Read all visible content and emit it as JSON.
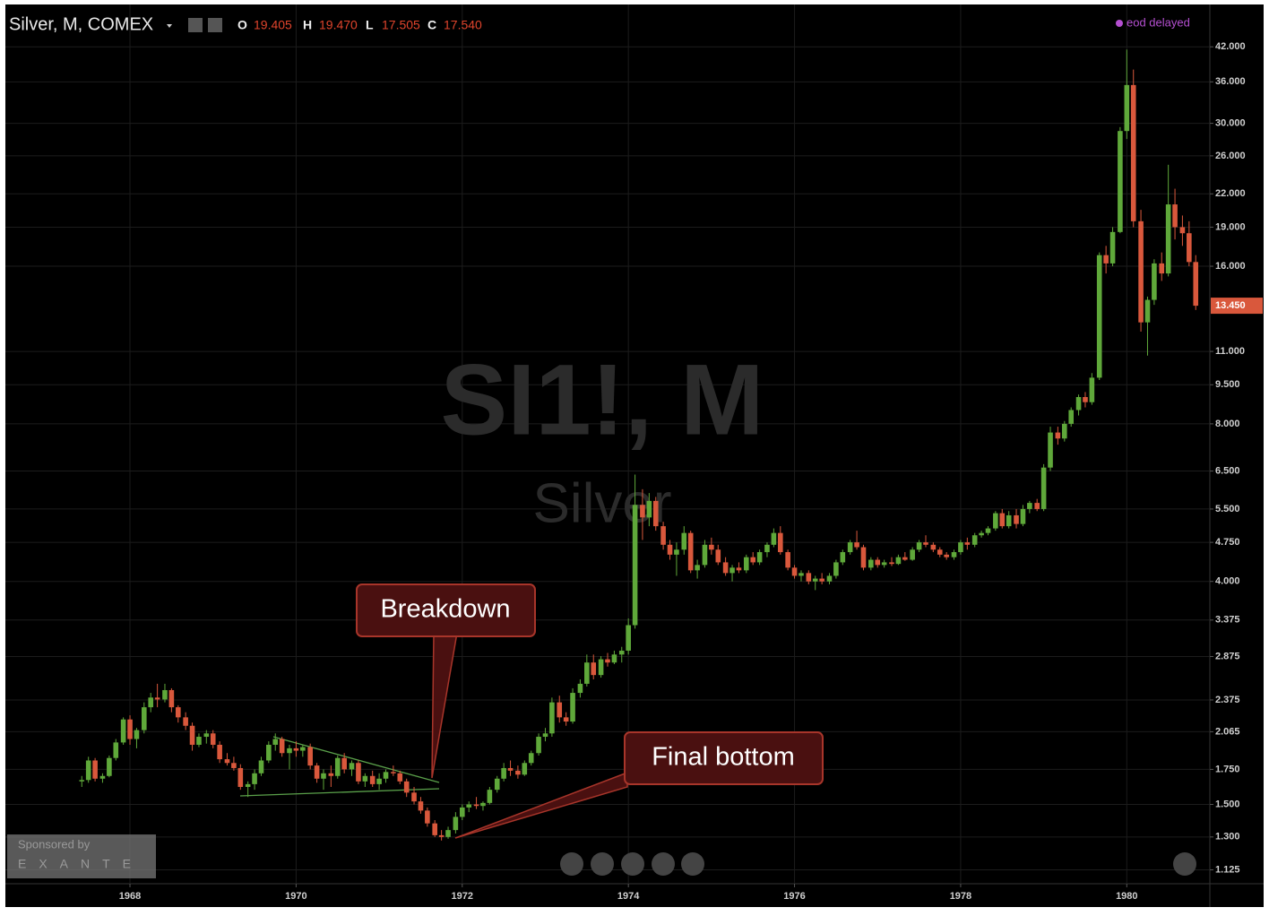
{
  "chart_data": {
    "type": "candlestick",
    "title": "Silver, M, COMEX",
    "ohlc_readout": [
      {
        "key": "O",
        "value": 19.405,
        "label": "19.405"
      },
      {
        "key": "H",
        "value": 19.47,
        "label": "19.470"
      },
      {
        "key": "L",
        "value": 17.505,
        "label": "17.505"
      },
      {
        "key": "C",
        "value": 17.54,
        "label": "17.540"
      }
    ],
    "status": "eod delayed",
    "watermark": "SI1!, M",
    "watermark_subtitle": "Silver",
    "annotations": [
      "Breakdown",
      "Final bottom"
    ],
    "sponsor": {
      "text": "Sponsored by",
      "name": "EXANTE"
    },
    "log_scale": true,
    "grid": true,
    "up_color": "#5fa83a",
    "down_color": "#d9583c",
    "last_price": {
      "value": 13.45,
      "label": "13.450"
    },
    "xlim": [
      1966.5,
      1981.0
    ],
    "xticks": [
      1968,
      1970,
      1972,
      1974,
      1976,
      1978,
      1980
    ],
    "ylim": [
      1.05,
      50
    ],
    "yticks": [
      {
        "value": 1.125,
        "label": "1.125"
      },
      {
        "value": 1.3,
        "label": "1.300"
      },
      {
        "value": 1.5,
        "label": "1.500"
      },
      {
        "value": 1.75,
        "label": "1.750"
      },
      {
        "value": 2.065,
        "label": "2.065"
      },
      {
        "value": 2.375,
        "label": "2.375"
      },
      {
        "value": 2.875,
        "label": "2.875"
      },
      {
        "value": 3.375,
        "label": "3.375"
      },
      {
        "value": 4,
        "label": "4.000"
      },
      {
        "value": 4.75,
        "label": "4.750"
      },
      {
        "value": 5.5,
        "label": "5.500"
      },
      {
        "value": 6.5,
        "label": "6.500"
      },
      {
        "value": 8,
        "label": "8.000"
      },
      {
        "value": 9.5,
        "label": "9.500"
      },
      {
        "value": 11,
        "label": "11.000"
      },
      {
        "value": 16,
        "label": "16.000"
      },
      {
        "value": 19,
        "label": "19.000"
      },
      {
        "value": 22,
        "label": "22.000"
      },
      {
        "value": 26,
        "label": "26.000"
      },
      {
        "value": 30,
        "label": "30.000"
      },
      {
        "value": 36,
        "label": "36.000"
      },
      {
        "value": 42,
        "label": "42.000"
      }
    ],
    "candles": [
      [
        1967.42,
        1.66,
        1.7,
        1.62,
        1.67
      ],
      [
        1967.5,
        1.67,
        1.85,
        1.65,
        1.82
      ],
      [
        1967.58,
        1.82,
        1.84,
        1.66,
        1.68
      ],
      [
        1967.67,
        1.68,
        1.72,
        1.65,
        1.7
      ],
      [
        1967.75,
        1.7,
        1.86,
        1.69,
        1.84
      ],
      [
        1967.83,
        1.84,
        2.0,
        1.82,
        1.97
      ],
      [
        1967.92,
        1.97,
        2.2,
        1.95,
        2.18
      ],
      [
        1968.0,
        2.18,
        2.22,
        1.95,
        2.0
      ],
      [
        1968.08,
        2.0,
        2.1,
        1.92,
        2.08
      ],
      [
        1968.17,
        2.08,
        2.35,
        2.05,
        2.3
      ],
      [
        1968.25,
        2.3,
        2.45,
        2.25,
        2.4
      ],
      [
        1968.33,
        2.4,
        2.55,
        2.3,
        2.38
      ],
      [
        1968.42,
        2.38,
        2.55,
        2.35,
        2.48
      ],
      [
        1968.5,
        2.48,
        2.5,
        2.25,
        2.3
      ],
      [
        1968.58,
        2.3,
        2.32,
        2.15,
        2.2
      ],
      [
        1968.67,
        2.2,
        2.25,
        2.08,
        2.12
      ],
      [
        1968.75,
        2.12,
        2.15,
        1.9,
        1.95
      ],
      [
        1968.83,
        1.95,
        2.05,
        1.93,
        2.02
      ],
      [
        1968.92,
        2.02,
        2.08,
        1.96,
        2.05
      ],
      [
        1969.0,
        2.05,
        2.08,
        1.92,
        1.95
      ],
      [
        1969.08,
        1.95,
        1.98,
        1.8,
        1.83
      ],
      [
        1969.17,
        1.83,
        1.88,
        1.78,
        1.8
      ],
      [
        1969.25,
        1.8,
        1.85,
        1.74,
        1.76
      ],
      [
        1969.33,
        1.76,
        1.79,
        1.6,
        1.62
      ],
      [
        1969.42,
        1.62,
        1.66,
        1.55,
        1.64
      ],
      [
        1969.5,
        1.64,
        1.75,
        1.6,
        1.72
      ],
      [
        1969.58,
        1.72,
        1.85,
        1.7,
        1.82
      ],
      [
        1969.67,
        1.82,
        1.98,
        1.8,
        1.95
      ],
      [
        1969.75,
        1.95,
        2.05,
        1.9,
        2.0
      ],
      [
        1969.83,
        2.0,
        2.02,
        1.85,
        1.88
      ],
      [
        1969.92,
        1.88,
        1.95,
        1.75,
        1.92
      ],
      [
        1970.0,
        1.92,
        1.98,
        1.85,
        1.9
      ],
      [
        1970.08,
        1.9,
        1.95,
        1.85,
        1.93
      ],
      [
        1970.17,
        1.93,
        1.96,
        1.75,
        1.78
      ],
      [
        1970.25,
        1.78,
        1.8,
        1.65,
        1.68
      ],
      [
        1970.33,
        1.68,
        1.75,
        1.6,
        1.72
      ],
      [
        1970.42,
        1.72,
        1.78,
        1.62,
        1.7
      ],
      [
        1970.5,
        1.7,
        1.86,
        1.68,
        1.84
      ],
      [
        1970.58,
        1.84,
        1.88,
        1.72,
        1.75
      ],
      [
        1970.67,
        1.75,
        1.82,
        1.7,
        1.8
      ],
      [
        1970.75,
        1.8,
        1.82,
        1.64,
        1.66
      ],
      [
        1970.83,
        1.66,
        1.72,
        1.62,
        1.7
      ],
      [
        1970.92,
        1.7,
        1.74,
        1.62,
        1.64
      ],
      [
        1971.0,
        1.64,
        1.72,
        1.6,
        1.68
      ],
      [
        1971.08,
        1.68,
        1.75,
        1.65,
        1.73
      ],
      [
        1971.17,
        1.73,
        1.78,
        1.7,
        1.72
      ],
      [
        1971.25,
        1.72,
        1.74,
        1.64,
        1.66
      ],
      [
        1971.33,
        1.66,
        1.68,
        1.55,
        1.58
      ],
      [
        1971.42,
        1.58,
        1.62,
        1.5,
        1.52
      ],
      [
        1971.5,
        1.52,
        1.55,
        1.44,
        1.46
      ],
      [
        1971.58,
        1.46,
        1.48,
        1.36,
        1.38
      ],
      [
        1971.67,
        1.38,
        1.4,
        1.3,
        1.31
      ],
      [
        1971.75,
        1.31,
        1.34,
        1.28,
        1.3
      ],
      [
        1971.83,
        1.3,
        1.36,
        1.29,
        1.34
      ],
      [
        1971.92,
        1.34,
        1.45,
        1.32,
        1.42
      ],
      [
        1972.0,
        1.42,
        1.5,
        1.4,
        1.48
      ],
      [
        1972.08,
        1.48,
        1.52,
        1.45,
        1.5
      ],
      [
        1972.17,
        1.5,
        1.55,
        1.47,
        1.49
      ],
      [
        1972.25,
        1.49,
        1.52,
        1.46,
        1.51
      ],
      [
        1972.33,
        1.51,
        1.62,
        1.5,
        1.6
      ],
      [
        1972.42,
        1.6,
        1.7,
        1.58,
        1.68
      ],
      [
        1972.5,
        1.68,
        1.8,
        1.66,
        1.76
      ],
      [
        1972.58,
        1.76,
        1.82,
        1.7,
        1.74
      ],
      [
        1972.67,
        1.74,
        1.78,
        1.68,
        1.71
      ],
      [
        1972.75,
        1.71,
        1.82,
        1.7,
        1.8
      ],
      [
        1972.83,
        1.8,
        1.9,
        1.78,
        1.88
      ],
      [
        1972.92,
        1.88,
        2.05,
        1.86,
        2.02
      ],
      [
        1973.0,
        2.02,
        2.1,
        1.98,
        2.05
      ],
      [
        1973.08,
        2.05,
        2.4,
        2.02,
        2.35
      ],
      [
        1973.17,
        2.35,
        2.42,
        2.15,
        2.2
      ],
      [
        1973.25,
        2.2,
        2.25,
        2.12,
        2.16
      ],
      [
        1973.33,
        2.16,
        2.5,
        2.14,
        2.45
      ],
      [
        1973.42,
        2.45,
        2.6,
        2.4,
        2.55
      ],
      [
        1973.5,
        2.55,
        2.9,
        2.52,
        2.8
      ],
      [
        1973.58,
        2.8,
        2.9,
        2.6,
        2.65
      ],
      [
        1973.67,
        2.65,
        2.88,
        2.62,
        2.84
      ],
      [
        1973.75,
        2.84,
        2.92,
        2.75,
        2.8
      ],
      [
        1973.83,
        2.8,
        2.95,
        2.78,
        2.9
      ],
      [
        1973.92,
        2.9,
        3.0,
        2.8,
        2.95
      ],
      [
        1974.0,
        2.95,
        3.4,
        2.9,
        3.3
      ],
      [
        1974.08,
        3.3,
        6.4,
        3.25,
        5.6
      ],
      [
        1974.17,
        5.6,
        6.0,
        4.8,
        5.3
      ],
      [
        1974.25,
        5.3,
        5.9,
        5.1,
        5.7
      ],
      [
        1974.33,
        5.7,
        5.8,
        5.0,
        5.1
      ],
      [
        1974.42,
        5.1,
        5.2,
        4.6,
        4.7
      ],
      [
        1974.5,
        4.7,
        4.8,
        4.4,
        4.5
      ],
      [
        1974.58,
        4.5,
        4.75,
        4.1,
        4.6
      ],
      [
        1974.67,
        4.6,
        5.1,
        4.5,
        4.95
      ],
      [
        1974.75,
        4.95,
        5.0,
        4.15,
        4.2
      ],
      [
        1974.83,
        4.2,
        4.4,
        4.05,
        4.3
      ],
      [
        1974.92,
        4.3,
        4.8,
        4.25,
        4.7
      ],
      [
        1975.0,
        4.7,
        4.85,
        4.5,
        4.6
      ],
      [
        1975.08,
        4.6,
        4.7,
        4.3,
        4.35
      ],
      [
        1975.17,
        4.35,
        4.45,
        4.1,
        4.15
      ],
      [
        1975.25,
        4.15,
        4.3,
        4.0,
        4.25
      ],
      [
        1975.33,
        4.25,
        4.35,
        4.15,
        4.2
      ],
      [
        1975.42,
        4.2,
        4.5,
        4.15,
        4.45
      ],
      [
        1975.5,
        4.45,
        4.55,
        4.3,
        4.35
      ],
      [
        1975.58,
        4.35,
        4.6,
        4.3,
        4.55
      ],
      [
        1975.67,
        4.55,
        4.75,
        4.45,
        4.7
      ],
      [
        1975.75,
        4.7,
        5.05,
        4.65,
        4.95
      ],
      [
        1975.83,
        4.95,
        5.1,
        4.5,
        4.55
      ],
      [
        1975.92,
        4.55,
        4.6,
        4.2,
        4.25
      ],
      [
        1976.0,
        4.25,
        4.3,
        4.05,
        4.1
      ],
      [
        1976.08,
        4.1,
        4.2,
        4.0,
        4.15
      ],
      [
        1976.17,
        4.15,
        4.2,
        3.95,
        4.0
      ],
      [
        1976.25,
        4.0,
        4.1,
        3.85,
        4.05
      ],
      [
        1976.33,
        4.05,
        4.15,
        3.95,
        4.0
      ],
      [
        1976.42,
        4.0,
        4.15,
        3.95,
        4.1
      ],
      [
        1976.5,
        4.1,
        4.4,
        4.05,
        4.35
      ],
      [
        1976.58,
        4.35,
        4.6,
        4.3,
        4.55
      ],
      [
        1976.67,
        4.55,
        4.8,
        4.5,
        4.75
      ],
      [
        1976.75,
        4.75,
        5.0,
        4.6,
        4.65
      ],
      [
        1976.83,
        4.65,
        4.7,
        4.2,
        4.25
      ],
      [
        1976.92,
        4.25,
        4.45,
        4.2,
        4.4
      ],
      [
        1977.0,
        4.4,
        4.45,
        4.25,
        4.3
      ],
      [
        1977.08,
        4.3,
        4.4,
        4.25,
        4.35
      ],
      [
        1977.17,
        4.35,
        4.45,
        4.28,
        4.32
      ],
      [
        1977.25,
        4.32,
        4.5,
        4.3,
        4.45
      ],
      [
        1977.33,
        4.45,
        4.55,
        4.38,
        4.4
      ],
      [
        1977.42,
        4.4,
        4.65,
        4.38,
        4.6
      ],
      [
        1977.5,
        4.6,
        4.8,
        4.55,
        4.75
      ],
      [
        1977.58,
        4.75,
        4.9,
        4.65,
        4.7
      ],
      [
        1977.67,
        4.7,
        4.75,
        4.55,
        4.6
      ],
      [
        1977.75,
        4.6,
        4.65,
        4.45,
        4.5
      ],
      [
        1977.83,
        4.5,
        4.55,
        4.4,
        4.45
      ],
      [
        1977.92,
        4.45,
        4.6,
        4.4,
        4.55
      ],
      [
        1978.0,
        4.55,
        4.8,
        4.5,
        4.75
      ],
      [
        1978.08,
        4.75,
        4.85,
        4.6,
        4.7
      ],
      [
        1978.17,
        4.7,
        4.95,
        4.65,
        4.9
      ],
      [
        1978.25,
        4.9,
        5.0,
        4.85,
        4.95
      ],
      [
        1978.33,
        4.95,
        5.1,
        4.9,
        5.05
      ],
      [
        1978.42,
        5.05,
        5.45,
        5.0,
        5.4
      ],
      [
        1978.5,
        5.4,
        5.5,
        5.05,
        5.1
      ],
      [
        1978.58,
        5.1,
        5.45,
        5.05,
        5.35
      ],
      [
        1978.67,
        5.35,
        5.5,
        5.05,
        5.15
      ],
      [
        1978.75,
        5.15,
        5.6,
        5.1,
        5.5
      ],
      [
        1978.83,
        5.5,
        5.7,
        5.4,
        5.65
      ],
      [
        1978.92,
        5.65,
        5.75,
        5.45,
        5.5
      ],
      [
        1979.0,
        5.5,
        6.7,
        5.45,
        6.6
      ],
      [
        1979.08,
        6.6,
        7.9,
        6.5,
        7.7
      ],
      [
        1979.17,
        7.7,
        7.9,
        7.3,
        7.5
      ],
      [
        1979.25,
        7.5,
        8.1,
        7.4,
        8.0
      ],
      [
        1979.33,
        8.0,
        8.6,
        7.9,
        8.5
      ],
      [
        1979.42,
        8.5,
        9.1,
        8.3,
        9.0
      ],
      [
        1979.5,
        9.0,
        9.2,
        8.6,
        8.8
      ],
      [
        1979.58,
        8.8,
        10.0,
        8.7,
        9.8
      ],
      [
        1979.67,
        9.8,
        17.0,
        9.7,
        16.8
      ],
      [
        1979.75,
        16.8,
        17.5,
        15.5,
        16.2
      ],
      [
        1979.83,
        16.2,
        19.0,
        16.0,
        18.6
      ],
      [
        1979.92,
        18.6,
        29.5,
        18.5,
        29.0
      ],
      [
        1980.0,
        29.0,
        41.5,
        28.0,
        35.5
      ],
      [
        1980.08,
        35.5,
        38.0,
        19.0,
        19.5
      ],
      [
        1980.17,
        19.5,
        20.5,
        12.0,
        12.5
      ],
      [
        1980.25,
        12.5,
        14.0,
        10.8,
        13.8
      ],
      [
        1980.33,
        13.8,
        16.5,
        13.5,
        16.2
      ],
      [
        1980.42,
        16.2,
        17.0,
        15.0,
        15.5
      ],
      [
        1980.5,
        15.5,
        25.0,
        15.3,
        21.0
      ],
      [
        1980.58,
        21.0,
        22.5,
        18.0,
        19.0
      ],
      [
        1980.67,
        19.0,
        20.0,
        17.5,
        18.5
      ],
      [
        1980.75,
        18.5,
        19.5,
        16.0,
        16.3
      ],
      [
        1980.83,
        16.3,
        16.8,
        13.2,
        13.45
      ]
    ]
  }
}
